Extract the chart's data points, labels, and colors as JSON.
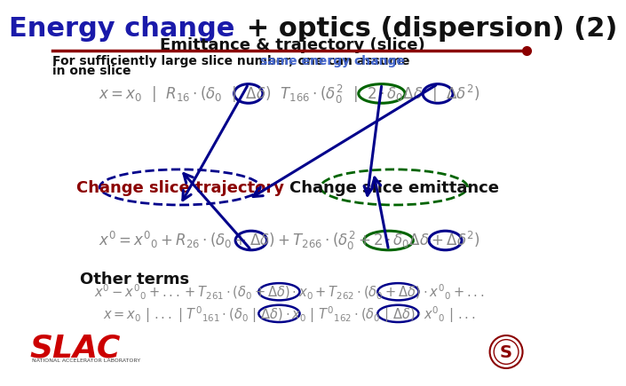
{
  "title_part1": "Energy change",
  "title_part2": " + optics (dispersion) (2)",
  "subtitle": "Emittance & trajectory (slice)",
  "body_text1": "For sufficiently large slice number, one can assume ",
  "body_text1_colored": "same energy change",
  "body_text2": "in one slice",
  "label_traj": "Change slice trajectory",
  "label_emit": "Change slice emittance",
  "label_other": "Other terms",
  "title_color1": "#1a1aaa",
  "title_color2": "#111111",
  "subtitle_color": "#111111",
  "body_color": "#111111",
  "colored_text_color": "#4466cc",
  "traj_text_color": "#8b0000",
  "emit_text_color": "#111111",
  "other_text_color": "#111111",
  "divider_color": "#8b0000",
  "arrow_color": "#00008b",
  "circle_blue": "#00008b",
  "circle_green": "#006400",
  "ellipse_traj_color": "#00008b",
  "ellipse_emit_color": "#006400",
  "bg_color": "#ffffff",
  "eq_color": "#888888"
}
